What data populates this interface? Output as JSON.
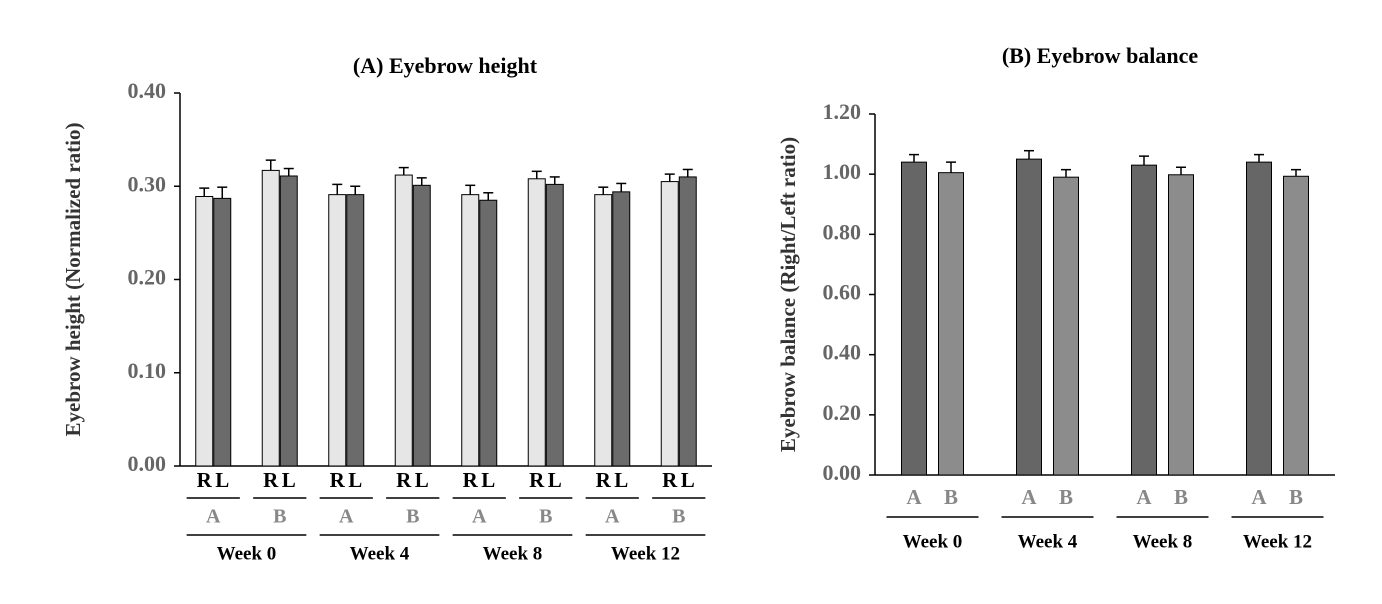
{
  "chart_data": [
    {
      "type": "bar",
      "title": "(A) Eyebrow height",
      "y_label": "Eyebrow height (Normalized ratio)",
      "categories": [
        "A",
        "B",
        "A",
        "B",
        "A",
        "B",
        "A",
        "B"
      ],
      "category_groups": [
        "Week 0",
        "Week 4",
        "Week 8",
        "Week 12"
      ],
      "series": [
        {
          "name": "R",
          "color": "#e6e6e6",
          "values": [
            0.289,
            0.317,
            0.291,
            0.312,
            0.291,
            0.308,
            0.291,
            0.305
          ],
          "errors": [
            0.009,
            0.011,
            0.011,
            0.008,
            0.01,
            0.008,
            0.008,
            0.008
          ]
        },
        {
          "name": "L",
          "color": "#6b6b6b",
          "values": [
            0.287,
            0.311,
            0.291,
            0.301,
            0.285,
            0.302,
            0.294,
            0.31
          ],
          "errors": [
            0.012,
            0.008,
            0.009,
            0.008,
            0.008,
            0.008,
            0.009,
            0.008
          ]
        }
      ],
      "ylim": [
        0,
        0.4
      ],
      "yticks": [
        {
          "value": 0,
          "label": "0.00"
        },
        {
          "value": 0.1,
          "label": "0.10"
        },
        {
          "value": 0.2,
          "label": "0.20"
        },
        {
          "value": 0.3,
          "label": "0.30"
        },
        {
          "value": 0.4,
          "label": "0.40"
        }
      ]
    },
    {
      "type": "bar",
      "title": "(B) Eyebrow balance",
      "y_label": "Eyebrow balance (Right/Left ratio)",
      "categories": [
        "Week 0",
        "Week 4",
        "Week 8",
        "Week 12"
      ],
      "series": [
        {
          "name": "A",
          "color": "#666666",
          "values": [
            1.04,
            1.05,
            1.03,
            1.04
          ],
          "errors": [
            0.025,
            0.028,
            0.03,
            0.025
          ]
        },
        {
          "name": "B",
          "color": "#8c8c8c",
          "values": [
            1.005,
            0.99,
            0.998,
            0.993
          ],
          "errors": [
            0.035,
            0.025,
            0.025,
            0.022
          ]
        }
      ],
      "ylim": [
        0,
        1.2
      ],
      "yticks": [
        {
          "value": 0,
          "label": "0.00"
        },
        {
          "value": 0.2,
          "label": "0.20"
        },
        {
          "value": 0.4,
          "label": "0.40"
        },
        {
          "value": 0.6,
          "label": "0.60"
        },
        {
          "value": 0.8,
          "label": "0.80"
        },
        {
          "value": 1.0,
          "label": "1.00"
        },
        {
          "value": 1.2,
          "label": "1.20"
        }
      ]
    }
  ]
}
